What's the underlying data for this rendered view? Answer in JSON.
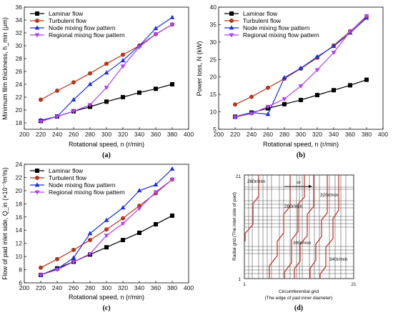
{
  "colors": {
    "laminar": "#000000",
    "turbulent": "#b5361c",
    "node": "#1a2fe0",
    "regional": "#b040f0",
    "grid_line": "#c0392b"
  },
  "chart_data": [
    {
      "type": "line",
      "panel_label": "(a)",
      "xlabel": "Rotational speed, n (r/min)",
      "ylabel": "Minimum film thickness, h_min (μm)",
      "xlim": [
        200,
        400
      ],
      "ylim": [
        17,
        36
      ],
      "xticks": [
        200,
        220,
        240,
        260,
        280,
        300,
        320,
        340,
        360,
        380,
        400
      ],
      "yticks": [
        18,
        20,
        22,
        24,
        26,
        28,
        30,
        32,
        34,
        36
      ],
      "legend_position": "top-left",
      "x": [
        220,
        240,
        260,
        280,
        300,
        320,
        340,
        360,
        380
      ],
      "series": [
        {
          "name": "Laminar flow",
          "marker": "square",
          "values": [
            18.3,
            19.0,
            19.8,
            20.5,
            21.3,
            22.0,
            22.7,
            23.3,
            24.0
          ]
        },
        {
          "name": "Turbulent flow",
          "marker": "circle",
          "values": [
            21.6,
            23.0,
            24.3,
            25.7,
            27.2,
            28.6,
            30.0,
            31.8,
            33.3
          ]
        },
        {
          "name": "Node mixing flow pattern",
          "marker": "triangle-up",
          "values": [
            18.4,
            19.0,
            21.6,
            24.0,
            25.8,
            27.7,
            30.0,
            32.7,
            34.4
          ]
        },
        {
          "name": "Regional mixing flow pattern",
          "marker": "triangle-down",
          "values": [
            18.2,
            19.0,
            19.8,
            20.8,
            23.5,
            26.8,
            29.8,
            31.8,
            33.3
          ]
        }
      ]
    },
    {
      "type": "line",
      "panel_label": "(b)",
      "xlabel": "Rotational speed, n (r/min)",
      "ylabel": "Power loss, N (kW)",
      "xlim": [
        200,
        400
      ],
      "ylim": [
        5,
        40
      ],
      "xticks": [
        200,
        220,
        240,
        260,
        280,
        300,
        320,
        340,
        360,
        380,
        400
      ],
      "yticks": [
        5,
        10,
        15,
        20,
        25,
        30,
        35,
        40
      ],
      "legend_position": "top-left",
      "x": [
        220,
        240,
        260,
        280,
        300,
        320,
        340,
        360,
        380
      ],
      "series": [
        {
          "name": "Laminar flow",
          "marker": "square",
          "values": [
            8.6,
            9.8,
            11.0,
            12.2,
            13.4,
            14.8,
            16.2,
            17.6,
            19.2
          ]
        },
        {
          "name": "Turbulent flow",
          "marker": "circle",
          "values": [
            12.1,
            14.3,
            16.9,
            19.5,
            22.4,
            25.5,
            29.0,
            33.1,
            37.2
          ]
        },
        {
          "name": "Node mixing flow pattern",
          "marker": "triangle-up",
          "values": [
            8.5,
            9.8,
            9.3,
            19.8,
            22.5,
            25.8,
            28.8,
            32.6,
            36.9
          ]
        },
        {
          "name": "Regional mixing flow pattern",
          "marker": "triangle-down",
          "values": [
            8.5,
            9.5,
            11.5,
            13.7,
            17.4,
            22.0,
            27.0,
            33.0,
            37.5
          ]
        }
      ]
    },
    {
      "type": "line",
      "panel_label": "(c)",
      "xlabel": "Rotational speed, n (r/min)",
      "ylabel": "Flow of pad inlet side, Q_in (×10⁻³m³/s)",
      "xlim": [
        200,
        400
      ],
      "ylim": [
        6,
        24
      ],
      "xticks": [
        200,
        220,
        240,
        260,
        280,
        300,
        320,
        340,
        360,
        380,
        400
      ],
      "yticks": [
        6,
        8,
        10,
        12,
        14,
        16,
        18,
        20,
        22,
        24
      ],
      "legend_position": "top-left",
      "x": [
        220,
        240,
        260,
        280,
        300,
        320,
        340,
        360,
        380
      ],
      "series": [
        {
          "name": "Laminar flow",
          "marker": "square",
          "values": [
            7.2,
            8.2,
            9.2,
            10.3,
            11.4,
            12.5,
            13.6,
            14.9,
            16.2
          ]
        },
        {
          "name": "Turbulent flow",
          "marker": "circle",
          "values": [
            8.3,
            9.6,
            11.0,
            12.5,
            14.1,
            15.8,
            17.7,
            19.6,
            21.7
          ]
        },
        {
          "name": "Node mixing flow pattern",
          "marker": "triangle-up",
          "values": [
            7.2,
            8.1,
            9.8,
            13.5,
            15.5,
            17.4,
            20.0,
            20.9,
            23.3
          ]
        },
        {
          "name": "Regional mixing flow pattern",
          "marker": "triangle-down",
          "values": [
            7.2,
            8.0,
            9.2,
            10.4,
            13.2,
            15.0,
            17.3,
            19.8,
            21.7
          ]
        }
      ]
    }
  ],
  "diagram_d": {
    "panel_label": "(d)",
    "xlabel_line1": "Circumferential grid",
    "xlabel_line2": "(The edge of pad inner diameter)",
    "ylabel": "Radial grid (The inlet side of pad)",
    "corner_labels": {
      "x_start": "1",
      "x_end": "21",
      "y_start": "1",
      "y_end": "21"
    },
    "omega_label": "ω",
    "speed_labels": [
      "260r/min",
      "280r/min",
      "300r/min",
      "320r/min",
      "340r/min"
    ]
  }
}
